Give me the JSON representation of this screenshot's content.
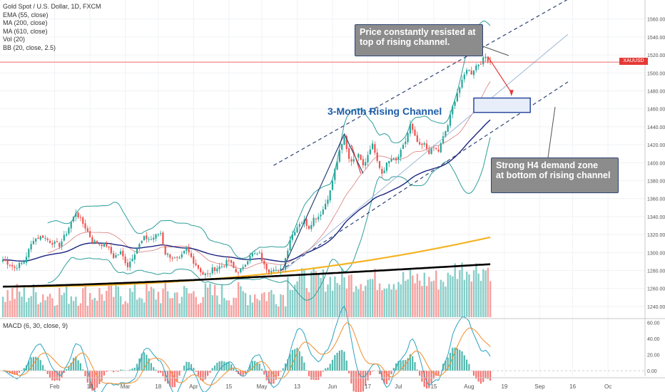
{
  "legend": {
    "title": "Gold Spot / U.S. Dollar, 1D, FXCM",
    "studies": [
      "EMA (55, close)",
      "MA (200, close)",
      "MA (610, close)",
      "Vol (20)",
      "BB (20, close, 2.5)"
    ]
  },
  "macd_label": "MACD (6, 30, close, 9)",
  "price_badge": {
    "symbol": "XAUUSD",
    "value": "1512.05"
  },
  "annotations": {
    "channel_title": "3-Month Rising Channel",
    "callout_top": "Price constantly resisted at\ntop of rising channel.",
    "callout_bottom": "Strong H4 demand zone\nat bottom of rising channel"
  },
  "colors": {
    "bull": "#26a69a",
    "bear": "#ef5350",
    "ema55": "#1a237e",
    "ma200": "#f5b324",
    "ma610": "#000000",
    "bb": "#2e9e9a",
    "channel": "#2d4373",
    "macd_line": "#2aa2c0",
    "signal_line": "#f28c28",
    "current_price": "#e53935"
  },
  "chart_data": {
    "type": "candlestick",
    "price_axis": {
      "ticks": [
        "1560.00",
        "1540.00",
        "1520.00",
        "1500.00",
        "1480.00",
        "1460.00",
        "1440.00",
        "1420.00",
        "1400.00",
        "1380.00",
        "1360.00",
        "1340.00",
        "1320.00",
        "1300.00",
        "1280.00",
        "1260.00",
        "1240.00"
      ],
      "range": [
        1228,
        1578
      ]
    },
    "macd_axis": {
      "ticks": [
        "60.00",
        "40.00",
        "20.00",
        "0.00"
      ],
      "range": [
        -7,
        62
      ]
    },
    "time_axis": {
      "labels": [
        "Feb",
        "18",
        "Mar",
        "18",
        "Apr",
        "15",
        "May",
        "13",
        "Jun",
        "17",
        "Jul",
        "15",
        "Aug",
        "19",
        "Sep",
        "16",
        "Oc"
      ],
      "label_bars": [
        22,
        37,
        52,
        66,
        81,
        96,
        110,
        125,
        140,
        155,
        168,
        183,
        198,
        213,
        228,
        242,
        257
      ]
    },
    "current_price": 1512.05,
    "ohlc_anchors": [
      [
        0,
        1292
      ],
      [
        5,
        1283
      ],
      [
        9,
        1290
      ],
      [
        13,
        1315
      ],
      [
        17,
        1318
      ],
      [
        20,
        1312
      ],
      [
        24,
        1308
      ],
      [
        27,
        1322
      ],
      [
        31,
        1345
      ],
      [
        35,
        1328
      ],
      [
        38,
        1313
      ],
      [
        41,
        1310
      ],
      [
        44,
        1308
      ],
      [
        47,
        1295
      ],
      [
        50,
        1300
      ],
      [
        53,
        1285
      ],
      [
        57,
        1305
      ],
      [
        60,
        1316
      ],
      [
        63,
        1315
      ],
      [
        67,
        1322
      ],
      [
        69,
        1299
      ],
      [
        73,
        1293
      ],
      [
        75,
        1292
      ],
      [
        78,
        1304
      ],
      [
        81,
        1290
      ],
      [
        85,
        1276
      ],
      [
        87,
        1275
      ],
      [
        89,
        1281
      ],
      [
        93,
        1285
      ],
      [
        96,
        1291
      ],
      [
        99,
        1278
      ],
      [
        102,
        1282
      ],
      [
        105,
        1298
      ],
      [
        109,
        1298
      ],
      [
        111,
        1285
      ],
      [
        113,
        1280
      ],
      [
        115,
        1283
      ],
      [
        117,
        1278
      ],
      [
        119,
        1283
      ],
      [
        122,
        1315
      ],
      [
        124,
        1325
      ],
      [
        126,
        1333
      ],
      [
        128,
        1335
      ],
      [
        130,
        1328
      ],
      [
        132,
        1338
      ],
      [
        134,
        1340
      ],
      [
        136,
        1348
      ],
      [
        139,
        1368
      ],
      [
        141,
        1392
      ],
      [
        143,
        1412
      ],
      [
        145,
        1428
      ],
      [
        147,
        1405
      ],
      [
        149,
        1402
      ],
      [
        151,
        1412
      ],
      [
        153,
        1398
      ],
      [
        155,
        1408
      ],
      [
        157,
        1422
      ],
      [
        159,
        1400
      ],
      [
        161,
        1388
      ],
      [
        163,
        1398
      ],
      [
        165,
        1404
      ],
      [
        167,
        1402
      ],
      [
        169,
        1412
      ],
      [
        171,
        1424
      ],
      [
        173,
        1442
      ],
      [
        175,
        1428
      ],
      [
        177,
        1418
      ],
      [
        179,
        1420
      ],
      [
        181,
        1412
      ],
      [
        183,
        1416
      ],
      [
        185,
        1413
      ],
      [
        187,
        1428
      ],
      [
        189,
        1442
      ],
      [
        191,
        1462
      ],
      [
        193,
        1478
      ],
      [
        195,
        1490
      ],
      [
        197,
        1505
      ],
      [
        199,
        1500
      ],
      [
        201,
        1508
      ],
      [
        203,
        1512
      ],
      [
        205,
        1518
      ],
      [
        207,
        1512
      ]
    ],
    "volume_relative": "ranges from ~0.1 to 1.0 of panel height; largest bars in August",
    "bollinger_multiplier": 2.5,
    "ema_period": 55,
    "ma200_start": 1262,
    "ma200_end": 1317,
    "ma610_start": 1262,
    "ma610_end": 1287,
    "channel": {
      "upper": [
        [
          115,
          1397
        ],
        [
          240,
          1582
        ]
      ],
      "middle": [
        [
          120,
          1281
        ],
        [
          240,
          1543
        ]
      ],
      "lower": [
        [
          118,
          1280
        ],
        [
          240,
          1490
        ]
      ]
    },
    "demand_zone": {
      "bar_from": 200,
      "bar_to": 224,
      "price_low": 1456,
      "price_high": 1472
    },
    "macd_levels": {
      "peak": 55,
      "signal_peak": 47
    }
  }
}
